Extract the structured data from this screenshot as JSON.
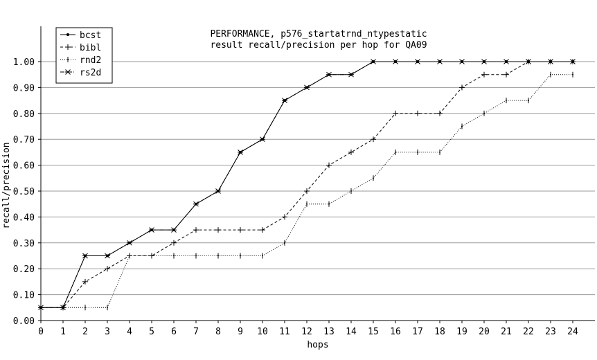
{
  "chart_data": {
    "type": "line",
    "title": "PERFORMANCE, p576_startatrnd_ntypestatic",
    "subtitle": "result recall/precision per hop for QA09",
    "xlabel": "hops",
    "ylabel": "recall/precision",
    "xlim": [
      0,
      24
    ],
    "ylim": [
      0,
      1.05
    ],
    "x": [
      0,
      1,
      2,
      3,
      4,
      5,
      6,
      7,
      8,
      9,
      10,
      11,
      12,
      13,
      14,
      15,
      16,
      17,
      18,
      19,
      20,
      21,
      22,
      23,
      24
    ],
    "x_ticks": [
      "0",
      "1",
      "2",
      "3",
      "4",
      "5",
      "6",
      "7",
      "8",
      "9",
      "10",
      "11",
      "12",
      "13",
      "14",
      "15",
      "16",
      "17",
      "18",
      "19",
      "20",
      "21",
      "22",
      "23",
      "24"
    ],
    "y_ticks": [
      "0.00",
      "0.10",
      "0.20",
      "0.30",
      "0.40",
      "0.50",
      "0.60",
      "0.70",
      "0.80",
      "0.90",
      "1.00"
    ],
    "grid": "horizontal",
    "legend_position": "top-left",
    "series": [
      {
        "name": "bcst",
        "marker": "dot",
        "dash": "solid",
        "values": [
          0.05,
          0.05,
          0.25,
          0.25,
          0.3,
          0.35,
          0.35,
          0.45,
          0.5,
          0.65,
          0.7,
          0.85,
          0.9,
          0.95,
          0.95,
          1.0,
          1.0,
          1.0,
          1.0,
          1.0,
          1.0,
          1.0,
          1.0,
          1.0,
          1.0
        ]
      },
      {
        "name": "bibl",
        "marker": "plus",
        "dash": "dashed",
        "values": [
          0.05,
          0.05,
          0.15,
          0.2,
          0.25,
          0.25,
          0.3,
          0.35,
          0.35,
          0.35,
          0.35,
          0.4,
          0.5,
          0.6,
          0.65,
          0.7,
          0.8,
          0.8,
          0.8,
          0.9,
          0.95,
          0.95,
          1.0,
          1.0,
          1.0
        ]
      },
      {
        "name": "rnd2",
        "marker": "vbar",
        "dash": "dotted",
        "values": [
          0.05,
          0.05,
          0.05,
          0.05,
          0.25,
          0.25,
          0.25,
          0.25,
          0.25,
          0.25,
          0.25,
          0.3,
          0.45,
          0.45,
          0.5,
          0.55,
          0.65,
          0.65,
          0.65,
          0.75,
          0.8,
          0.85,
          0.85,
          0.95,
          0.95
        ]
      },
      {
        "name": "rs2d",
        "marker": "star",
        "dash": "dashdot",
        "values": [
          0.05,
          0.05,
          0.25,
          0.25,
          0.3,
          0.35,
          0.35,
          0.45,
          0.5,
          0.65,
          0.7,
          0.85,
          0.9,
          0.95,
          0.95,
          1.0,
          1.0,
          1.0,
          1.0,
          1.0,
          1.0,
          1.0,
          1.0,
          1.0,
          1.0
        ]
      }
    ]
  }
}
